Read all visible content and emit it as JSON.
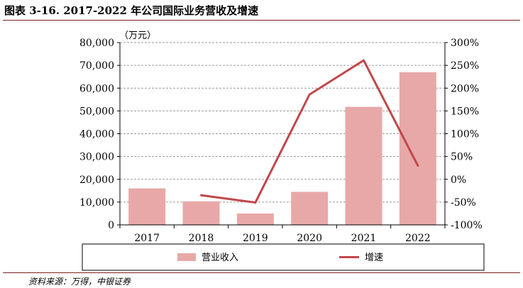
{
  "header": {
    "title": "图表 3-16. 2017-2022 年公司国际业务营收及增速"
  },
  "footer": {
    "source": "资料来源：万得，中银证券"
  },
  "chart_data": {
    "type": "bar",
    "categories": [
      "2017",
      "2018",
      "2019",
      "2020",
      "2021",
      "2022"
    ],
    "unit_label": "（万元）",
    "series": [
      {
        "name": "营业收入",
        "type": "bar",
        "axis": "left",
        "color": "#e8a8a8",
        "values": [
          16000,
          10300,
          5000,
          14500,
          51800,
          67000
        ]
      },
      {
        "name": "增速",
        "type": "line",
        "axis": "right",
        "color": "#c0474a",
        "values": [
          null,
          -35,
          -51,
          186,
          261,
          30
        ]
      }
    ],
    "y_left": {
      "ylim": [
        0,
        80000
      ],
      "ticks": [
        0,
        10000,
        20000,
        30000,
        40000,
        50000,
        60000,
        70000,
        80000
      ],
      "tick_labels": [
        "0",
        "10,000",
        "20,000",
        "30,000",
        "40,000",
        "50,000",
        "60,000",
        "70,000",
        "80,000"
      ]
    },
    "y_right": {
      "ylim": [
        -100,
        300
      ],
      "ticks": [
        -100,
        -50,
        0,
        50,
        100,
        150,
        200,
        250,
        300
      ],
      "tick_labels": [
        "-100%",
        "-50%",
        "0%",
        "50%",
        "100%",
        "150%",
        "200%",
        "250%",
        "300%"
      ]
    },
    "grid": true,
    "legend_position": "bottom"
  }
}
